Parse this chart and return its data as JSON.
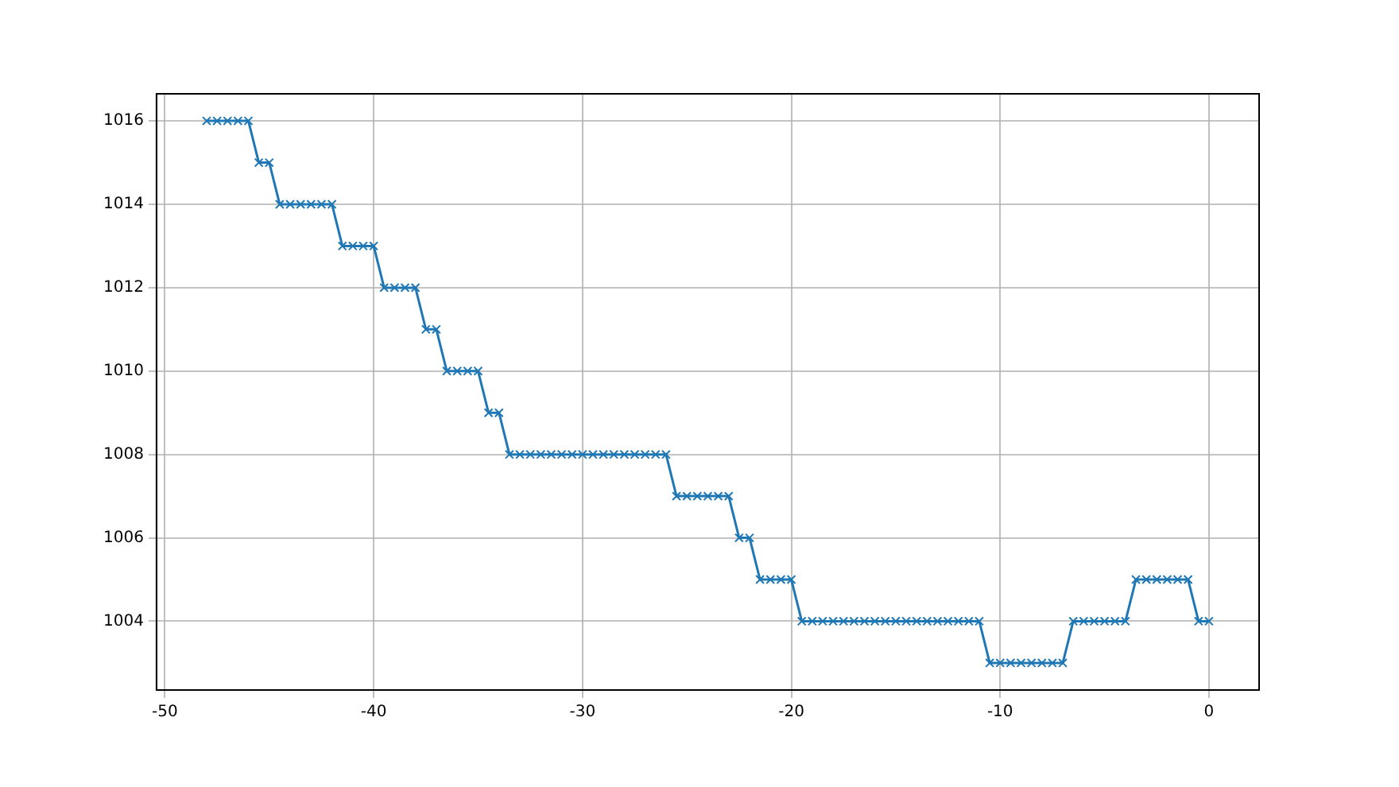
{
  "chart_data": {
    "type": "line",
    "x": [
      -48,
      -47.5,
      -47,
      -46.5,
      -46,
      -45.5,
      -45,
      -44.5,
      -44,
      -43.5,
      -43,
      -42.5,
      -42,
      -41.5,
      -41,
      -40.5,
      -40,
      -39.5,
      -39,
      -38.5,
      -38,
      -37.5,
      -37,
      -36.5,
      -36,
      -35.5,
      -35,
      -34.5,
      -34,
      -33.5,
      -33,
      -32.5,
      -32,
      -31.5,
      -31,
      -30.5,
      -30,
      -29.5,
      -29,
      -28.5,
      -28,
      -27.5,
      -27,
      -26.5,
      -26,
      -25.5,
      -25,
      -24.5,
      -24,
      -23.5,
      -23,
      -22.5,
      -22,
      -21.5,
      -21,
      -20.5,
      -20,
      -19.5,
      -19,
      -18.5,
      -18,
      -17.5,
      -17,
      -16.5,
      -16,
      -15.5,
      -15,
      -14.5,
      -14,
      -13.5,
      -13,
      -12.5,
      -12,
      -11.5,
      -11,
      -10.5,
      -10,
      -9.5,
      -9,
      -8.5,
      -8,
      -7.5,
      -7,
      -6.5,
      -6,
      -5.5,
      -5,
      -4.5,
      -4,
      -3.5,
      -3,
      -2.5,
      -2,
      -1.5,
      -1,
      -0.5,
      0
    ],
    "series": [
      {
        "color": "#1f77b4",
        "values": [
          1016,
          1016,
          1016,
          1016,
          1016,
          1015,
          1015,
          1014,
          1014,
          1014,
          1014,
          1014,
          1014,
          1013,
          1013,
          1013,
          1013,
          1012,
          1012,
          1012,
          1012,
          1011,
          1011,
          1010,
          1010,
          1010,
          1010,
          1009,
          1009,
          1008,
          1008,
          1008,
          1008,
          1008,
          1008,
          1008,
          1008,
          1008,
          1008,
          1008,
          1008,
          1008,
          1008,
          1008,
          1008,
          1007,
          1007,
          1007,
          1007,
          1007,
          1007,
          1006,
          1006,
          1005,
          1005,
          1005,
          1005,
          1004,
          1004,
          1004,
          1004,
          1004,
          1004,
          1004,
          1004,
          1004,
          1004,
          1004,
          1004,
          1004,
          1004,
          1004,
          1004,
          1004,
          1004,
          1003,
          1003,
          1003,
          1003,
          1003,
          1003,
          1003,
          1003,
          1004,
          1004,
          1004,
          1004,
          1004,
          1004,
          1005,
          1005,
          1005,
          1005,
          1005,
          1005,
          1004,
          1004
        ]
      }
    ],
    "xlim": [
      -50.4,
      2.4
    ],
    "ylim": [
      1002.35,
      1016.65
    ],
    "xticks": [
      -50,
      -40,
      -30,
      -20,
      -10,
      0
    ],
    "yticks": [
      1004,
      1006,
      1008,
      1010,
      1012,
      1014,
      1016
    ],
    "grid": true,
    "marker": "cross",
    "legend": false
  }
}
